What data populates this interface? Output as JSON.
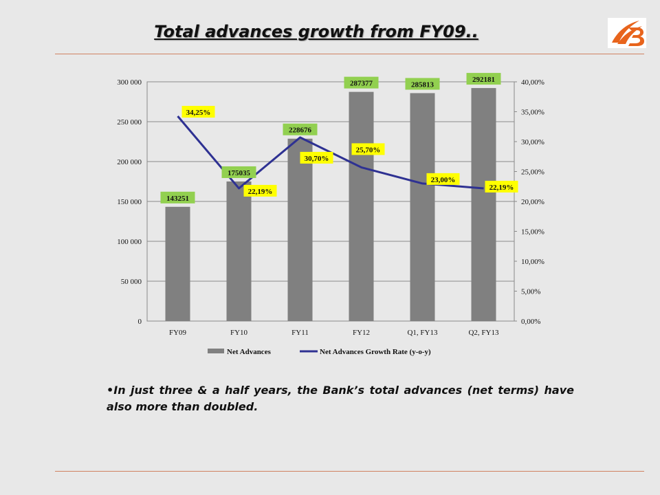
{
  "slide": {
    "title": "Total advances growth from FY09..",
    "bullet": "In just three & a half years, the Bank’s total advances (net terms) have also more than doubled."
  },
  "colors": {
    "bar": "#808080",
    "line": "#2e3192",
    "bar_label_bg": "#92d050",
    "line_label_bg": "#ffff00",
    "rule": "#d08060",
    "logo": "#e8641c"
  },
  "logo": {
    "icon": "bank-of-baroda-logo-icon"
  },
  "chart_data": {
    "type": "bar",
    "categories": [
      "FY09",
      "FY10",
      "FY11",
      "FY12",
      "Q1, FY13",
      "Q2, FY13"
    ],
    "series": [
      {
        "name": "Net Advances",
        "type": "bar",
        "axis": "left",
        "values": [
          143251,
          175035,
          228676,
          287377,
          285813,
          292181
        ],
        "labels": [
          "143251",
          "175035",
          "228676",
          "287377",
          "285813",
          "292181"
        ]
      },
      {
        "name": "Net Advances Growth Rate (y-o-y)",
        "type": "line",
        "axis": "right",
        "values": [
          34.25,
          22.19,
          30.7,
          25.7,
          23.0,
          22.19
        ],
        "labels": [
          "34,25%",
          "22,19%",
          "30,70%",
          "25,70%",
          "23,00%",
          "22,19%"
        ]
      }
    ],
    "y_left": {
      "ylim": [
        0,
        300000
      ],
      "ticks": [
        "0",
        "50 000",
        "100 000",
        "150 000",
        "200 000",
        "250 000",
        "300 000"
      ]
    },
    "y_right": {
      "ylim": [
        0,
        40
      ],
      "ticks": [
        "0,00%",
        "5,00%",
        "10,00%",
        "15,00%",
        "20,00%",
        "25,00%",
        "30,00%",
        "35,00%",
        "40,00%"
      ]
    },
    "grid": true,
    "legend": "bottom"
  }
}
